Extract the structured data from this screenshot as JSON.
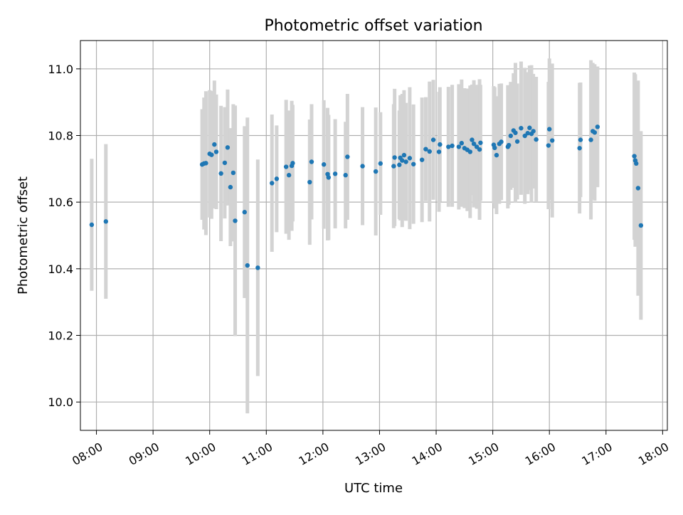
{
  "chart_data": {
    "type": "scatter",
    "title": "Photometric offset variation",
    "xlabel": "UTC time",
    "ylabel": "Photometric offset",
    "x_unit": "UTC clock time (HH:MM)",
    "xlim": [
      "07:43",
      "18:05"
    ],
    "ylim": [
      9.915,
      11.085
    ],
    "grid": true,
    "x_ticks": [
      "08:00",
      "09:00",
      "10:00",
      "11:00",
      "12:00",
      "13:00",
      "14:00",
      "15:00",
      "16:00",
      "17:00",
      "18:00"
    ],
    "y_ticks": [
      "10.0",
      "10.2",
      "10.4",
      "10.6",
      "10.8",
      "11.0"
    ],
    "y_tick_values": [
      10.0,
      10.2,
      10.4,
      10.6,
      10.8,
      11.0
    ],
    "colors": {
      "point": "#1f77b4",
      "errorbar": "#d3d3d3",
      "grid": "#b0b0b0",
      "axes": "#000000"
    },
    "series": [
      {
        "x": [
          "07:55",
          "08:10",
          "09:52",
          "09:54",
          "09:56",
          "10:00",
          "10:02",
          "10:05",
          "10:07",
          "10:12",
          "10:16",
          "10:19",
          "10:22",
          "10:25",
          "10:27",
          "10:37",
          "10:40",
          "10:51",
          "11:06",
          "11:11",
          "11:21",
          "11:24",
          "11:27",
          "11:28",
          "11:46",
          "11:48",
          "12:01",
          "12:05",
          "12:06",
          "12:13",
          "12:24",
          "12:26",
          "12:42",
          "12:56",
          "13:01",
          "13:15",
          "13:16",
          "13:21",
          "13:22",
          "13:24",
          "13:26",
          "13:28",
          "13:32",
          "13:36",
          "13:45",
          "13:49",
          "13:53",
          "13:57",
          "14:03",
          "14:04",
          "14:13",
          "14:17",
          "14:24",
          "14:27",
          "14:30",
          "14:33",
          "14:36",
          "14:38",
          "14:40",
          "14:43",
          "14:46",
          "14:47",
          "15:01",
          "15:02",
          "15:04",
          "15:07",
          "15:09",
          "15:16",
          "15:17",
          "15:19",
          "15:22",
          "15:24",
          "15:26",
          "15:30",
          "15:34",
          "15:37",
          "15:39",
          "15:41",
          "15:43",
          "15:46",
          "15:59",
          "16:00",
          "16:03",
          "16:32",
          "16:33",
          "16:44",
          "16:46",
          "16:48",
          "16:51",
          "17:30",
          "17:31",
          "17:32",
          "17:34",
          "17:37"
        ],
        "y": [
          10.532,
          10.542,
          10.713,
          10.716,
          10.717,
          10.745,
          10.742,
          10.773,
          10.751,
          10.686,
          10.718,
          10.764,
          10.645,
          10.688,
          10.544,
          10.57,
          10.41,
          10.403,
          10.657,
          10.67,
          10.706,
          10.681,
          10.709,
          10.717,
          10.66,
          10.721,
          10.713,
          10.684,
          10.674,
          10.685,
          10.681,
          10.736,
          10.708,
          10.692,
          10.716,
          10.708,
          10.734,
          10.712,
          10.733,
          10.725,
          10.741,
          10.721,
          10.732,
          10.714,
          10.727,
          10.759,
          10.752,
          10.787,
          10.751,
          10.773,
          10.766,
          10.769,
          10.766,
          10.777,
          10.762,
          10.757,
          10.751,
          10.787,
          10.775,
          10.766,
          10.758,
          10.778,
          10.772,
          10.763,
          10.741,
          10.775,
          10.781,
          10.766,
          10.771,
          10.799,
          10.815,
          10.808,
          10.782,
          10.822,
          10.799,
          10.807,
          10.823,
          10.805,
          10.813,
          10.788,
          10.77,
          10.819,
          10.785,
          10.762,
          10.787,
          10.787,
          10.813,
          10.809,
          10.826,
          10.738,
          10.725,
          10.716,
          10.642,
          10.53
        ],
        "yerr": [
          0.198,
          0.232,
          0.166,
          0.198,
          0.216,
          0.191,
          0.192,
          0.192,
          0.172,
          0.203,
          0.167,
          0.174,
          0.177,
          0.206,
          0.346,
          0.258,
          0.444,
          0.325,
          0.206,
          0.16,
          0.201,
          0.194,
          0.195,
          0.175,
          0.188,
          0.173,
          0.193,
          0.199,
          0.188,
          0.164,
          0.16,
          0.189,
          0.177,
          0.192,
          0.154,
          0.186,
          0.206,
          0.163,
          0.188,
          0.2,
          0.195,
          0.177,
          0.213,
          0.179,
          0.187,
          0.156,
          0.21,
          0.18,
          0.18,
          0.172,
          0.18,
          0.183,
          0.188,
          0.191,
          0.18,
          0.184,
          0.199,
          0.166,
          0.191,
          0.186,
          0.211,
          0.174,
          0.176,
          0.182,
          0.177,
          0.18,
          0.175,
          0.185,
          0.179,
          0.162,
          0.172,
          0.21,
          0.174,
          0.2,
          0.204,
          0.183,
          0.187,
          0.206,
          0.172,
          0.188,
          0.191,
          0.212,
          0.231,
          0.196,
          0.172,
          0.239,
          0.205,
          0.205,
          0.181,
          0.251,
          0.259,
          0.221,
          0.323,
          0.283
        ]
      }
    ]
  }
}
